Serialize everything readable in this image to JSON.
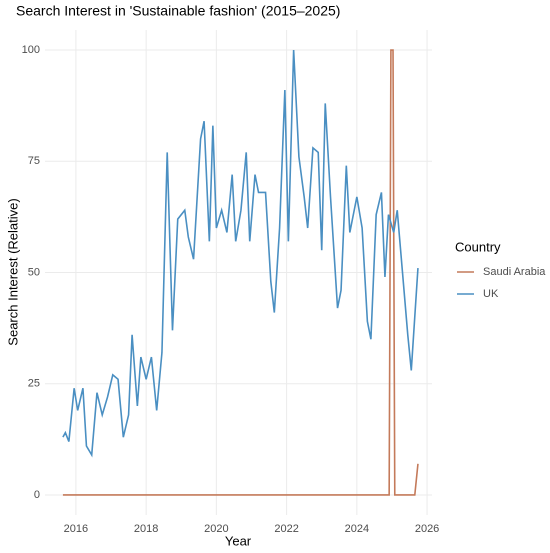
{
  "chart_data": {
    "type": "line",
    "title": "Search Interest in 'Sustainable fashion' (2015–2025)",
    "x_label": "Year",
    "y_label": "Search Interest (Relative)",
    "legend_title": "Country",
    "legend": "right",
    "grid": true,
    "xlim": [
      2015.12,
      2026.14
    ],
    "xticks": [
      2016,
      2018,
      2020,
      2022,
      2024,
      2026
    ],
    "ylim": [
      -4.5,
      104.5
    ],
    "yticks": [
      0,
      25,
      50,
      75,
      100
    ],
    "series": [
      {
        "name": "Saudi Arabia",
        "color": "#c47a5a",
        "x": [
          2015.63,
          2024.92,
          2024.97,
          2025.03,
          2025.08,
          2025.65,
          2025.74
        ],
        "values": [
          0,
          0,
          100,
          100,
          0,
          0,
          7
        ]
      },
      {
        "name": "UK",
        "color": "#4a8fc2",
        "x": [
          2015.63,
          2015.7,
          2015.8,
          2015.95,
          2016.05,
          2016.2,
          2016.3,
          2016.45,
          2016.6,
          2016.75,
          2016.9,
          2017.05,
          2017.2,
          2017.35,
          2017.5,
          2017.6,
          2017.75,
          2017.85,
          2018.0,
          2018.15,
          2018.3,
          2018.45,
          2018.6,
          2018.75,
          2018.9,
          2019.1,
          2019.2,
          2019.35,
          2019.55,
          2019.65,
          2019.8,
          2019.9,
          2020.0,
          2020.15,
          2020.3,
          2020.45,
          2020.55,
          2020.7,
          2020.85,
          2020.95,
          2021.1,
          2021.2,
          2021.4,
          2021.55,
          2021.65,
          2021.8,
          2021.95,
          2022.05,
          2022.2,
          2022.35,
          2022.5,
          2022.6,
          2022.75,
          2022.9,
          2023.0,
          2023.1,
          2023.25,
          2023.45,
          2023.55,
          2023.7,
          2023.8,
          2024.0,
          2024.15,
          2024.3,
          2024.4,
          2024.55,
          2024.7,
          2024.8,
          2024.9,
          2025.05,
          2025.15,
          2025.3,
          2025.45,
          2025.55,
          2025.74
        ],
        "values": [
          13,
          14,
          12,
          24,
          19,
          24,
          11,
          9,
          23,
          18,
          22,
          27,
          26,
          13,
          18,
          36,
          20,
          31,
          26,
          31,
          19,
          32,
          77,
          37,
          62,
          64,
          58,
          53,
          80,
          84,
          57,
          83,
          60,
          64,
          59,
          72,
          57,
          64,
          77,
          57,
          72,
          68,
          68,
          48,
          41,
          60,
          91,
          57,
          100,
          76,
          67,
          60,
          78,
          77,
          55,
          88,
          67,
          42,
          46,
          74,
          59,
          67,
          60,
          39,
          35,
          63,
          68,
          49,
          63,
          59,
          64,
          50,
          36,
          28,
          51
        ]
      }
    ]
  }
}
